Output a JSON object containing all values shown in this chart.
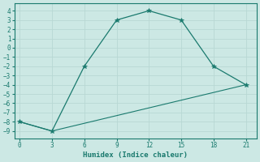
{
  "xlabel": "Humidex (Indice chaleur)",
  "bg_color": "#cce8e4",
  "line_color": "#1a7a6e",
  "grid_color": "#b8d8d4",
  "line1_x": [
    0,
    3,
    6,
    9,
    12,
    15,
    18,
    21
  ],
  "line1_y": [
    -8,
    -9,
    -2,
    3,
    4,
    3,
    -2,
    -4
  ],
  "line2_x": [
    0,
    3,
    21
  ],
  "line2_y": [
    -8,
    -9,
    -4
  ],
  "xlim": [
    -0.5,
    22
  ],
  "ylim": [
    -9.8,
    4.8
  ],
  "xticks": [
    0,
    3,
    6,
    9,
    12,
    15,
    18,
    21
  ],
  "yticks": [
    4,
    3,
    2,
    1,
    0,
    -1,
    -2,
    -3,
    -4,
    -5,
    -6,
    -7,
    -8,
    -9
  ],
  "tick_fontsize": 5.5,
  "xlabel_fontsize": 6.5
}
